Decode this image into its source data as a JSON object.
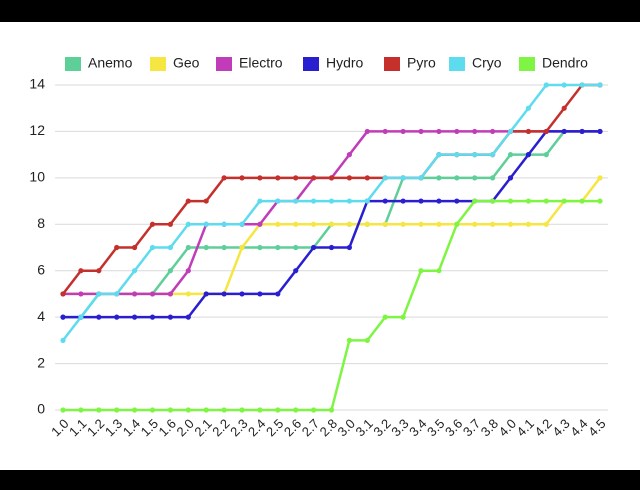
{
  "chart_data": {
    "type": "line",
    "categories": [
      "1.0",
      "1.1",
      "1.2",
      "1.3",
      "1.4",
      "1.5",
      "1.6",
      "2.0",
      "2.1",
      "2.2",
      "2.3",
      "2.4",
      "2.5",
      "2.6",
      "2.7",
      "2.8",
      "3.0",
      "3.1",
      "3.2",
      "3.3",
      "3.4",
      "3.5",
      "3.6",
      "3.7",
      "3.8",
      "4.0",
      "4.1",
      "4.2",
      "4.3",
      "4.4",
      "4.5"
    ],
    "series": [
      {
        "name": "Anemo",
        "color": "#5fcf9a",
        "values": [
          4,
          4,
          5,
          5,
          5,
          5,
          6,
          7,
          7,
          7,
          7,
          7,
          7,
          7,
          7,
          8,
          8,
          8,
          8,
          10,
          10,
          10,
          10,
          10,
          10,
          11,
          11,
          11,
          12,
          12,
          12
        ]
      },
      {
        "name": "Geo",
        "color": "#f5e642",
        "values": [
          5,
          5,
          5,
          5,
          5,
          5,
          5,
          5,
          5,
          5,
          7,
          8,
          8,
          8,
          8,
          8,
          8,
          8,
          8,
          8,
          8,
          8,
          8,
          8,
          8,
          8,
          8,
          8,
          9,
          9,
          10
        ]
      },
      {
        "name": "Electro",
        "color": "#c03cb8",
        "values": [
          5,
          5,
          5,
          5,
          5,
          5,
          5,
          6,
          8,
          8,
          8,
          8,
          9,
          9,
          10,
          10,
          11,
          12,
          12,
          12,
          12,
          12,
          12,
          12,
          12,
          12,
          12,
          12,
          12,
          12,
          12
        ]
      },
      {
        "name": "Hydro",
        "color": "#2a1fd0",
        "values": [
          4,
          4,
          4,
          4,
          4,
          4,
          4,
          4,
          5,
          5,
          5,
          5,
          5,
          6,
          7,
          7,
          7,
          9,
          9,
          9,
          9,
          9,
          9,
          9,
          9,
          10,
          11,
          12,
          12,
          12,
          12
        ]
      },
      {
        "name": "Pyro",
        "color": "#c4302b",
        "values": [
          5,
          6,
          6,
          7,
          7,
          8,
          8,
          9,
          9,
          10,
          10,
          10,
          10,
          10,
          10,
          10,
          10,
          10,
          10,
          10,
          10,
          11,
          11,
          11,
          11,
          12,
          12,
          12,
          13,
          14,
          14
        ]
      },
      {
        "name": "Cryo",
        "color": "#5ddcef",
        "values": [
          3,
          4,
          5,
          5,
          6,
          7,
          7,
          8,
          8,
          8,
          8,
          9,
          9,
          9,
          9,
          9,
          9,
          9,
          10,
          10,
          10,
          11,
          11,
          11,
          11,
          12,
          13,
          14,
          14,
          14,
          14
        ]
      },
      {
        "name": "Dendro",
        "color": "#7ef542",
        "values": [
          0,
          0,
          0,
          0,
          0,
          0,
          0,
          0,
          0,
          0,
          0,
          0,
          0,
          0,
          0,
          0,
          3,
          3,
          4,
          4,
          6,
          6,
          8,
          9,
          9,
          9,
          9,
          9,
          9,
          9,
          9
        ]
      }
    ],
    "ylim": [
      0,
      14
    ],
    "yticks": [
      0,
      2,
      4,
      6,
      8,
      10,
      12,
      14
    ],
    "grid": true
  }
}
